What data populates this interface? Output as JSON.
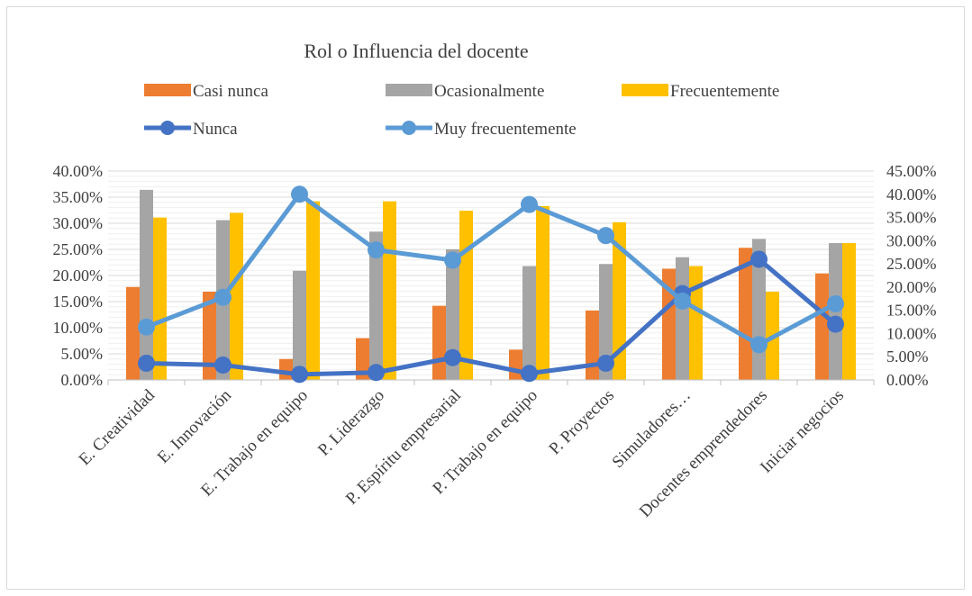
{
  "chart_data": {
    "type": "bar",
    "title": "Rol o Influencia del docente",
    "categories": [
      "E. Creatividad",
      "E. Innovación",
      "E. Trabajo en equipo",
      "P. Liderazgo",
      "P. Espíritu empresarial",
      "P. Trabajo en equipo",
      "P. Proyectos",
      "Simuladores…",
      "Docentes emprendedores",
      "Iniciar negocios"
    ],
    "bar_series": [
      {
        "name": "Casi nunca",
        "color": "#ED7D31",
        "values": [
          17.8,
          16.9,
          4.0,
          8.0,
          14.2,
          5.8,
          13.3,
          21.3,
          25.3,
          20.4
        ]
      },
      {
        "name": "Ocasionalmente",
        "color": "#A5A5A5",
        "values": [
          36.4,
          30.6,
          20.9,
          28.4,
          25.0,
          21.8,
          22.2,
          23.5,
          27.0,
          26.2
        ]
      },
      {
        "name": "Frecuentemente",
        "color": "#FFC000",
        "values": [
          31.1,
          32.0,
          34.2,
          34.2,
          32.4,
          33.3,
          30.2,
          21.8,
          16.9,
          26.2
        ]
      }
    ],
    "line_series": [
      {
        "name": "Nunca",
        "color": "#4472C4",
        "axis": "secondary",
        "values": [
          3.6,
          3.2,
          1.2,
          1.6,
          4.8,
          1.4,
          3.6,
          18.6,
          26.0,
          12.0
        ]
      },
      {
        "name": "Muy frecuentemente",
        "color": "#5B9BD5",
        "axis": "secondary",
        "values": [
          11.4,
          17.8,
          40.0,
          28.0,
          25.8,
          37.8,
          31.1,
          17.0,
          7.6,
          16.4
        ]
      }
    ],
    "y_primary": {
      "min": 0,
      "max": 40,
      "step": 5,
      "format": "percent2"
    },
    "y_secondary": {
      "min": 0,
      "max": 45,
      "step": 5,
      "format": "percent2"
    },
    "grid": true,
    "legend_position": "top"
  }
}
